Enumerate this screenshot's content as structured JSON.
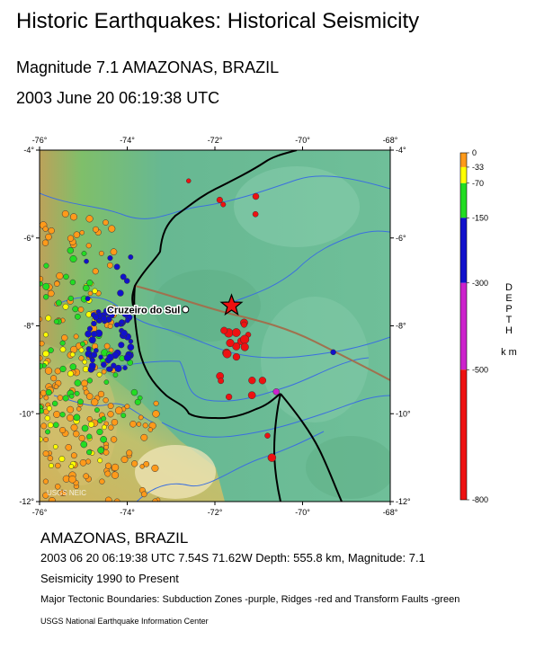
{
  "header": {
    "title": "Historic Earthquakes: Historical Seismicity",
    "subtitle_magnitude": "Magnitude 7.1 AMAZONAS, BRAZIL",
    "subtitle_datetime": "2003 June 20 06:19:38 UTC"
  },
  "map": {
    "lon_range": [
      -76,
      -68
    ],
    "lat_range": [
      -12,
      -4
    ],
    "lon_ticks": [
      -76,
      -74,
      -72,
      -70,
      -68
    ],
    "lat_ticks": [
      -4,
      -6,
      -8,
      -10,
      -12
    ],
    "lon_tick_labels": [
      "-76°",
      "-74°",
      "-72°",
      "-70°",
      "-68°"
    ],
    "lat_tick_labels": [
      "-4°",
      "-6°",
      "-8°",
      "-10°",
      "-12°"
    ],
    "city": {
      "name": "Cruzeiro do Sul",
      "lon": -72.67,
      "lat": -7.63
    },
    "epicenter": {
      "lon": -71.62,
      "lat": -7.54,
      "marker": "star-icon"
    },
    "watermark": "USGS NEIC",
    "colors": {
      "shallow": "#ff9a1a",
      "intermediate": "#ffff00",
      "mid": "#22dd22",
      "deep": "#1111cc",
      "very_deep": "#cc22cc",
      "deepest": "#ee1111"
    }
  },
  "legend": {
    "title": "DEPTH km",
    "labels": [
      "0",
      "-33",
      "-70",
      "-150",
      "-300",
      "-500",
      "-800"
    ],
    "bands": [
      {
        "from": 0,
        "to": 33,
        "color": "#ff9a1a"
      },
      {
        "from": 33,
        "to": 70,
        "color": "#ffff00"
      },
      {
        "from": 70,
        "to": 150,
        "color": "#22dd22"
      },
      {
        "from": 150,
        "to": 300,
        "color": "#1111cc"
      },
      {
        "from": 300,
        "to": 500,
        "color": "#cc22cc"
      },
      {
        "from": 500,
        "to": 800,
        "color": "#ee1111"
      }
    ]
  },
  "caption": {
    "place": "AMAZONAS, BRAZIL",
    "detail": "2003 06 20 06:19:38 UTC 7.54S 71.62W Depth: 555.8 km, Magnitude: 7.1",
    "period": "Seismicity 1990 to Present",
    "tectonics": "Major Tectonic Boundaries: Subduction Zones -purple, Ridges -red  and Transform Faults -green",
    "credit": "USGS National Earthquake Information Center"
  }
}
